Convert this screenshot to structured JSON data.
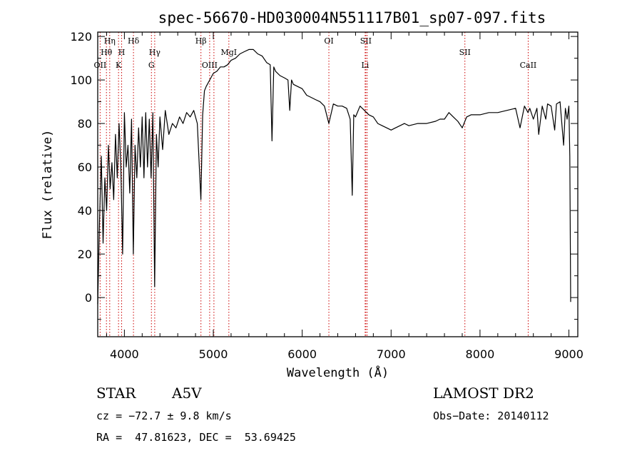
{
  "chart_data": {
    "type": "line",
    "title": "spec-56670-HD030004N551117B01_sp07-097.fits",
    "xlabel": "Wavelength (Å)",
    "ylabel": "Flux (relative)",
    "xlim": [
      3700,
      9100
    ],
    "ylim": [
      -18,
      122
    ],
    "xticks": [
      4000,
      5000,
      6000,
      7000,
      8000,
      9000
    ],
    "yticks": [
      0,
      20,
      40,
      60,
      80,
      100,
      120
    ],
    "line_color": "#000000",
    "marker_color": "#cc0000",
    "spectrum": {
      "x": [
        3700,
        3720,
        3740,
        3760,
        3780,
        3800,
        3820,
        3840,
        3860,
        3880,
        3900,
        3920,
        3940,
        3960,
        3980,
        4000,
        4020,
        4040,
        4060,
        4080,
        4100,
        4120,
        4140,
        4160,
        4180,
        4200,
        4220,
        4240,
        4260,
        4280,
        4300,
        4320,
        4340,
        4360,
        4380,
        4400,
        4430,
        4460,
        4500,
        4540,
        4580,
        4620,
        4660,
        4700,
        4740,
        4780,
        4820,
        4860,
        4880,
        4900,
        4920,
        4960,
        5000,
        5040,
        5080,
        5120,
        5160,
        5200,
        5250,
        5300,
        5350,
        5400,
        5450,
        5500,
        5550,
        5600,
        5640,
        5660,
        5680,
        5700,
        5750,
        5800,
        5840,
        5860,
        5880,
        5900,
        5950,
        6000,
        6050,
        6100,
        6150,
        6200,
        6250,
        6300,
        6350,
        6400,
        6450,
        6500,
        6540,
        6563,
        6580,
        6600,
        6650,
        6700,
        6750,
        6800,
        6850,
        6900,
        6950,
        7000,
        7050,
        7100,
        7150,
        7200,
        7300,
        7400,
        7500,
        7550,
        7600,
        7650,
        7700,
        7750,
        7800,
        7850,
        7900,
        8000,
        8100,
        8200,
        8300,
        8400,
        8450,
        8500,
        8540,
        8560,
        8600,
        8640,
        8660,
        8700,
        8740,
        8760,
        8800,
        8840,
        8860,
        8900,
        8940,
        8960,
        8980,
        9000,
        9010,
        9020
      ],
      "y": [
        -3,
        35,
        65,
        25,
        55,
        40,
        70,
        50,
        62,
        45,
        75,
        55,
        80,
        60,
        20,
        85,
        60,
        70,
        48,
        82,
        20,
        70,
        55,
        78,
        60,
        83,
        55,
        85,
        60,
        82,
        55,
        85,
        5,
        75,
        60,
        83,
        68,
        86,
        75,
        80,
        78,
        83,
        80,
        85,
        83,
        86,
        80,
        45,
        84,
        95,
        97,
        100,
        103,
        104,
        106,
        106,
        107,
        109,
        110,
        112,
        113,
        114,
        114,
        112,
        111,
        108,
        107,
        72,
        106,
        104,
        102,
        101,
        100,
        86,
        100,
        98,
        97,
        96,
        93,
        92,
        91,
        90,
        88,
        80,
        89,
        88,
        88,
        87,
        82,
        47,
        84,
        83,
        88,
        86,
        84,
        83,
        80,
        79,
        78,
        77,
        78,
        79,
        80,
        79,
        80,
        80,
        81,
        82,
        82,
        85,
        83,
        81,
        78,
        83,
        84,
        84,
        85,
        85,
        86,
        87,
        78,
        88,
        85,
        87,
        82,
        87,
        75,
        88,
        82,
        89,
        88,
        77,
        89,
        90,
        70,
        87,
        82,
        88,
        65,
        -2
      ]
    },
    "lines": [
      {
        "label": "OII",
        "x": 3727,
        "row": 3
      },
      {
        "label": "Hθ",
        "x": 3798,
        "row": 2
      },
      {
        "label": "Hη",
        "x": 3835,
        "row": 1
      },
      {
        "label": "K",
        "x": 3934,
        "row": 3
      },
      {
        "label": "H",
        "x": 3969,
        "row": 2
      },
      {
        "label": "Hδ",
        "x": 4102,
        "row": 1
      },
      {
        "label": "G",
        "x": 4304,
        "row": 3
      },
      {
        "label": "Hγ",
        "x": 4341,
        "row": 2
      },
      {
        "label": "OIII",
        "x": 4959,
        "row": 3
      },
      {
        "label": "Hβ",
        "x": 4861,
        "row": 1
      },
      {
        "label": "",
        "x": 5007,
        "row": 0
      },
      {
        "label": "MgI",
        "x": 5175,
        "row": 2
      },
      {
        "label": "OI",
        "x": 6300,
        "row": 1
      },
      {
        "label": "SII",
        "x": 6716,
        "row": 1
      },
      {
        "label": "Li",
        "x": 6708,
        "row": 3
      },
      {
        "label": "",
        "x": 6731,
        "row": 0
      },
      {
        "label": "SII",
        "x": 7830,
        "row": 2
      },
      {
        "label": "CaII",
        "x": 8542,
        "row": 3
      }
    ]
  },
  "info": {
    "object_class": "STAR",
    "subclass": "A5V",
    "survey": "LAMOST DR2",
    "cz": "cz = −72.7 ± 9.8 km/s",
    "obs_date": "Obs−Date: 20140112",
    "coords": "RA =  47.81623, DEC =  53.69425"
  }
}
